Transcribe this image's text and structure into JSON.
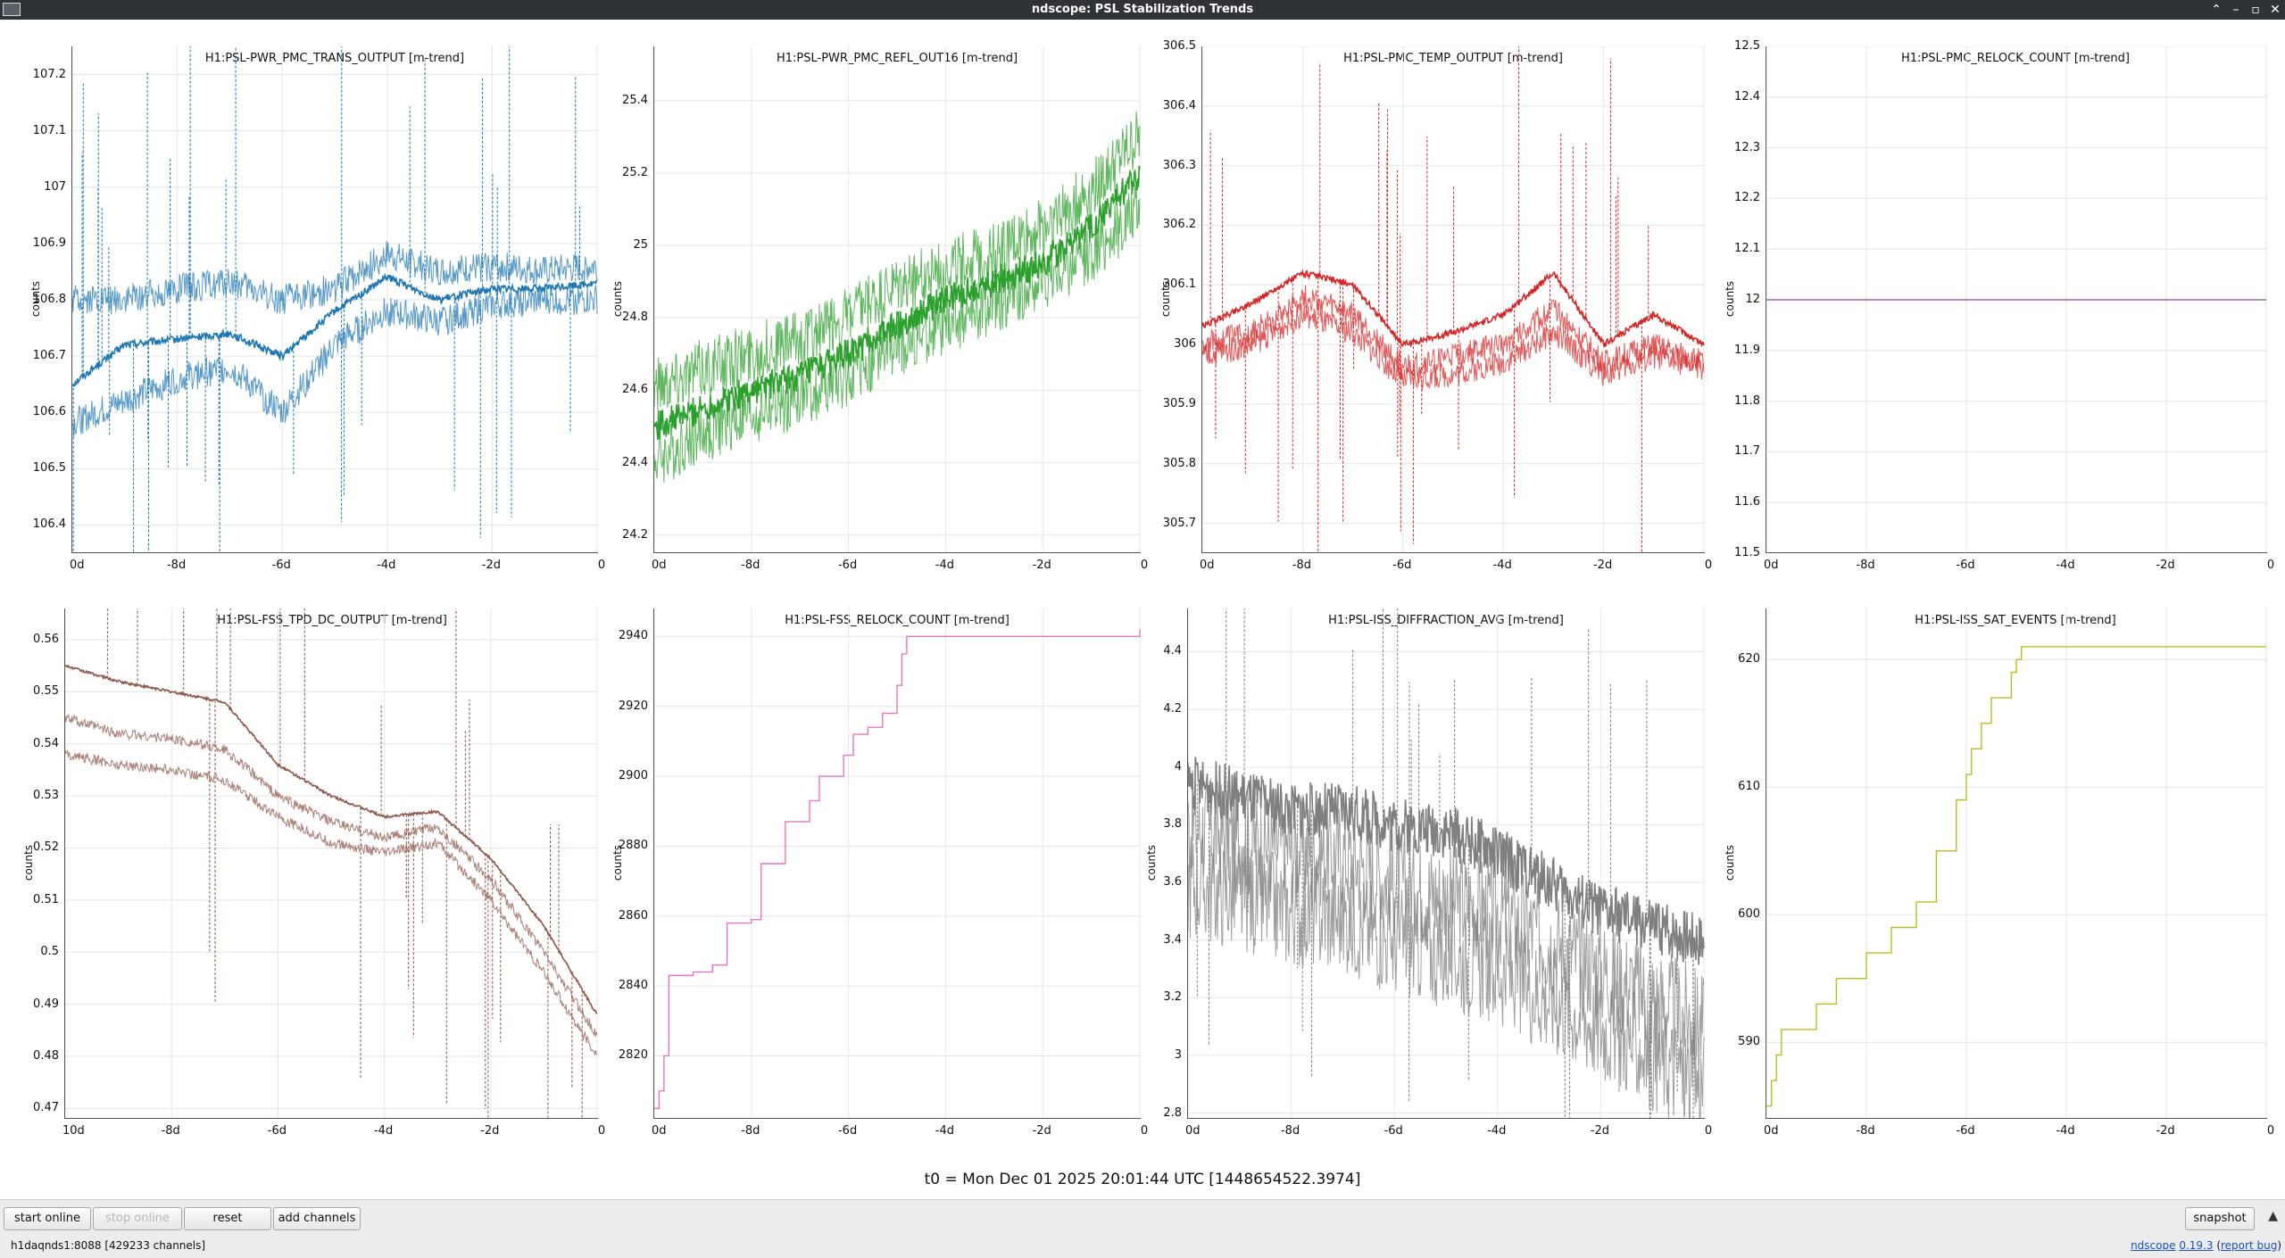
{
  "window": {
    "title": "ndscope: PSL Stabilization Trends"
  },
  "footer": {
    "t0": "t0 = Mon Dec 01 2025 20:01:44 UTC [1448654522.3974]"
  },
  "toolbar": {
    "start_online": "start online",
    "stop_online": "stop online",
    "reset": "reset",
    "add_channels": "add channels",
    "snapshot": "snapshot"
  },
  "status": {
    "server": "h1daqnds1:8088  [429233 channels]",
    "app": "ndscope",
    "version": "0.19.3",
    "report": "report bug"
  },
  "panels": [
    {
      "title": "H1:PSL-PWR_PMC_TRANS_OUTPUT [m-trend]",
      "ylabel": "counts",
      "color": "#1f77b4",
      "yticks": [
        "106.4",
        "106.5",
        "106.6",
        "106.7",
        "106.8",
        "106.9",
        "107",
        "107.1",
        "107.2"
      ],
      "xticks": [
        "0d",
        "-8d",
        "-6d",
        "-4d",
        "-2d",
        "0"
      ]
    },
    {
      "title": "H1:PSL-PWR_PMC_REFL_OUT16 [m-trend]",
      "ylabel": "counts",
      "color": "#2ca02c",
      "yticks": [
        "24.2",
        "24.4",
        "24.6",
        "24.8",
        "25",
        "25.2",
        "25.4"
      ],
      "xticks": [
        "0d",
        "-8d",
        "-6d",
        "-4d",
        "-2d",
        "0"
      ]
    },
    {
      "title": "H1:PSL-PMC_TEMP_OUTPUT [m-trend]",
      "ylabel": "counts",
      "color": "#d62728",
      "yticks": [
        "305.7",
        "305.8",
        "305.9",
        "306",
        "306.1",
        "306.2",
        "306.3",
        "306.4",
        "306.5"
      ],
      "xticks": [
        "0d",
        "-8d",
        "-6d",
        "-4d",
        "-2d",
        "0"
      ]
    },
    {
      "title": "H1:PSL-PMC_RELOCK_COUNT [m-trend]",
      "ylabel": "counts",
      "color": "#9467bd",
      "yticks": [
        "11.5",
        "11.6",
        "11.7",
        "11.8",
        "11.9",
        "12",
        "12.1",
        "12.2",
        "12.3",
        "12.4",
        "12.5"
      ],
      "xticks": [
        "0d",
        "-8d",
        "-6d",
        "-4d",
        "-2d",
        "0"
      ]
    },
    {
      "title": "H1:PSL-FSS_TPD_DC_OUTPUT [m-trend]",
      "ylabel": "counts",
      "color": "#8c564b",
      "yticks": [
        "0.47",
        "0.48",
        "0.49",
        "0.5",
        "0.51",
        "0.52",
        "0.53",
        "0.54",
        "0.55",
        "0.56"
      ],
      "xticks": [
        "10d",
        "-8d",
        "-6d",
        "-4d",
        "-2d",
        "0"
      ]
    },
    {
      "title": "H1:PSL-FSS_RELOCK_COUNT [m-trend]",
      "ylabel": "counts",
      "color": "#e377c2",
      "yticks": [
        "2820",
        "2840",
        "2860",
        "2880",
        "2900",
        "2920",
        "2940"
      ],
      "xticks": [
        "0d",
        "-8d",
        "-6d",
        "-4d",
        "-2d",
        "0"
      ]
    },
    {
      "title": "H1:PSL-ISS_DIFFRACTION_AVG [m-trend]",
      "ylabel": "counts",
      "color": "#7f7f7f",
      "yticks": [
        "2.8",
        "3",
        "3.2",
        "3.4",
        "3.6",
        "3.8",
        "4",
        "4.2",
        "4.4"
      ],
      "xticks": [
        "0d",
        "-8d",
        "-6d",
        "-4d",
        "-2d",
        "0"
      ]
    },
    {
      "title": "H1:PSL-ISS_SAT_EVENTS [m-trend]",
      "ylabel": "counts",
      "color": "#bcbd22",
      "yticks": [
        "590",
        "600",
        "610",
        "620"
      ],
      "xticks": [
        "0d",
        "-8d",
        "-6d",
        "-4d",
        "-2d",
        "0"
      ]
    }
  ],
  "chart_data": [
    {
      "type": "line",
      "title": "H1:PSL-PWR_PMC_TRANS_OUTPUT [m-trend]",
      "ylabel": "counts",
      "xlim": [
        -10,
        0
      ],
      "ylim": [
        106.35,
        107.25
      ],
      "grid": true,
      "x": [
        -10,
        -9,
        -8,
        -7,
        -6,
        -5,
        -4,
        -3,
        -2,
        -1,
        0
      ],
      "series": [
        {
          "values": [
            106.65,
            106.72,
            106.73,
            106.74,
            106.7,
            106.78,
            106.84,
            106.8,
            106.82,
            106.82,
            106.83
          ]
        },
        {
          "values": [
            106.8,
            106.8,
            106.82,
            106.83,
            106.8,
            106.82,
            106.88,
            106.85,
            106.86,
            106.85,
            106.86
          ]
        },
        {
          "values": [
            106.58,
            106.62,
            106.66,
            106.68,
            106.6,
            106.72,
            106.78,
            106.76,
            106.79,
            106.8,
            106.8
          ]
        }
      ]
    },
    {
      "type": "line",
      "title": "H1:PSL-PWR_PMC_REFL_OUT16 [m-trend]",
      "ylabel": "counts",
      "xlim": [
        -10,
        0
      ],
      "ylim": [
        24.15,
        25.55
      ],
      "grid": true,
      "x": [
        -10,
        -9,
        -8,
        -7,
        -6,
        -5,
        -4,
        -3,
        -2,
        -1,
        0
      ],
      "series": [
        {
          "values": [
            24.5,
            24.55,
            24.6,
            24.64,
            24.7,
            24.78,
            24.85,
            24.9,
            24.95,
            25.05,
            25.2
          ]
        },
        {
          "values": [
            24.4,
            24.48,
            24.53,
            24.58,
            24.64,
            24.72,
            24.78,
            24.84,
            24.9,
            24.98,
            25.1
          ]
        },
        {
          "values": [
            24.62,
            24.66,
            24.7,
            24.74,
            24.8,
            24.88,
            24.94,
            24.98,
            25.05,
            25.15,
            25.3
          ]
        }
      ]
    },
    {
      "type": "line",
      "title": "H1:PSL-PMC_TEMP_OUTPUT [m-trend]",
      "ylabel": "counts",
      "xlim": [
        -10,
        0
      ],
      "ylim": [
        305.65,
        306.5
      ],
      "grid": true,
      "x": [
        -10,
        -9,
        -8,
        -7,
        -6,
        -5,
        -4,
        -3,
        -2,
        -1,
        0
      ],
      "series": [
        {
          "values": [
            306.03,
            306.07,
            306.12,
            306.1,
            306.0,
            306.02,
            306.05,
            306.12,
            306.0,
            306.05,
            306.0
          ]
        },
        {
          "values": [
            306.0,
            306.02,
            306.08,
            306.05,
            305.96,
            305.98,
            306.0,
            306.06,
            305.97,
            306.0,
            305.97
          ]
        },
        {
          "values": [
            305.98,
            306.0,
            306.05,
            306.02,
            305.94,
            305.95,
            305.97,
            306.02,
            305.95,
            305.98,
            305.96
          ]
        }
      ]
    },
    {
      "type": "line",
      "title": "H1:PSL-PMC_RELOCK_COUNT [m-trend]",
      "ylabel": "counts",
      "xlim": [
        -10,
        0
      ],
      "ylim": [
        11.5,
        12.5
      ],
      "grid": true,
      "x": [
        -10,
        0
      ],
      "series": [
        {
          "values": [
            12,
            12
          ]
        }
      ]
    },
    {
      "type": "line",
      "title": "H1:PSL-FSS_TPD_DC_OUTPUT [m-trend]",
      "ylabel": "counts",
      "xlim": [
        -10,
        0
      ],
      "ylim": [
        0.468,
        0.566
      ],
      "grid": true,
      "x": [
        -10,
        -9,
        -8,
        -7,
        -6,
        -5,
        -4,
        -3,
        -2,
        -1,
        0
      ],
      "series": [
        {
          "values": [
            0.555,
            0.552,
            0.55,
            0.548,
            0.536,
            0.53,
            0.526,
            0.527,
            0.518,
            0.505,
            0.488
          ]
        },
        {
          "values": [
            0.545,
            0.542,
            0.541,
            0.539,
            0.53,
            0.525,
            0.522,
            0.524,
            0.514,
            0.5,
            0.484
          ]
        },
        {
          "values": [
            0.538,
            0.536,
            0.535,
            0.533,
            0.526,
            0.521,
            0.519,
            0.521,
            0.51,
            0.496,
            0.48
          ]
        }
      ]
    },
    {
      "type": "line",
      "title": "H1:PSL-FSS_RELOCK_COUNT [m-trend]",
      "ylabel": "counts",
      "xlim": [
        -10,
        0
      ],
      "ylim": [
        2802,
        2948
      ],
      "grid": true,
      "x": [
        -10,
        -9.9,
        -9.8,
        -9.7,
        -9.2,
        -8.8,
        -8.5,
        -8.0,
        -7.8,
        -7.3,
        -6.8,
        -6.6,
        -6.1,
        -5.9,
        -5.6,
        -5.3,
        -5.0,
        -4.9,
        -4.8,
        -2.0,
        0
      ],
      "series": [
        {
          "values": [
            2805,
            2810,
            2820,
            2843,
            2844,
            2846,
            2858,
            2859,
            2875,
            2887,
            2893,
            2900,
            2906,
            2912,
            2914,
            2918,
            2926,
            2935,
            2940,
            2940,
            2942
          ]
        }
      ]
    },
    {
      "type": "line",
      "title": "H1:PSL-ISS_DIFFRACTION_AVG [m-trend]",
      "ylabel": "counts",
      "xlim": [
        -10,
        0
      ],
      "ylim": [
        2.78,
        4.55
      ],
      "grid": true,
      "x": [
        -10,
        -9,
        -8,
        -7,
        -6,
        -5,
        -4,
        -3,
        -2,
        -1,
        0
      ],
      "series": [
        {
          "values": [
            3.95,
            3.9,
            3.85,
            3.85,
            3.8,
            3.78,
            3.7,
            3.6,
            3.5,
            3.45,
            3.4
          ]
        },
        {
          "values": [
            3.8,
            3.75,
            3.72,
            3.7,
            3.6,
            3.55,
            3.5,
            3.4,
            3.3,
            3.2,
            3.1
          ]
        },
        {
          "values": [
            3.6,
            3.55,
            3.5,
            3.48,
            3.4,
            3.35,
            3.3,
            3.2,
            3.1,
            3.0,
            2.9
          ]
        }
      ]
    },
    {
      "type": "line",
      "title": "H1:PSL-ISS_SAT_EVENTS [m-trend]",
      "ylabel": "counts",
      "xlim": [
        -10,
        0
      ],
      "ylim": [
        584,
        624
      ],
      "grid": true,
      "x": [
        -10,
        -9.9,
        -9.8,
        -9.7,
        -9.0,
        -8.6,
        -8.0,
        -7.5,
        -7.0,
        -6.6,
        -6.2,
        -6.0,
        -5.9,
        -5.7,
        -5.5,
        -5.1,
        -5.0,
        -4.9,
        -4.8,
        0
      ],
      "series": [
        {
          "values": [
            585,
            587,
            589,
            591,
            593,
            595,
            597,
            599,
            601,
            605,
            609,
            611,
            613,
            615,
            617,
            619,
            620,
            621,
            621,
            621
          ]
        }
      ]
    }
  ]
}
